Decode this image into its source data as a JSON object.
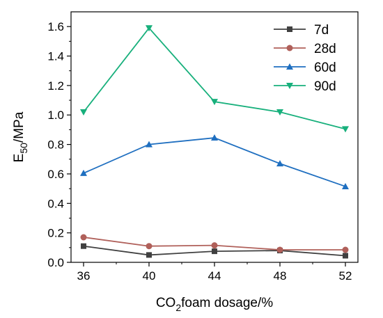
{
  "chart_data": {
    "type": "line",
    "title": "",
    "xlabel": {
      "prefix": "CO",
      "sub": "2",
      "suffix": "foam dosage/%"
    },
    "ylabel": {
      "prefix": "E",
      "sub": "50",
      "suffix": "/MPa"
    },
    "x": [
      36,
      40,
      44,
      48,
      52
    ],
    "x_tick_labels": [
      "36",
      "40",
      "44",
      "48",
      "52"
    ],
    "ylim": [
      0,
      1.7
    ],
    "y_ticks": [
      0.0,
      0.2,
      0.4,
      0.6,
      0.8,
      1.0,
      1.2,
      1.4,
      1.6
    ],
    "y_tick_labels": [
      "0.0",
      "0.2",
      "0.4",
      "0.6",
      "0.8",
      "1.0",
      "1.2",
      "1.4",
      "1.6"
    ],
    "grid": false,
    "legend_position": "top-right",
    "series": [
      {
        "name": "7d",
        "values": [
          0.11,
          0.05,
          0.075,
          0.08,
          0.045
        ],
        "color": "#404040",
        "marker": "square"
      },
      {
        "name": "28d",
        "values": [
          0.17,
          0.11,
          0.115,
          0.085,
          0.085
        ],
        "color": "#b0605a",
        "marker": "circle"
      },
      {
        "name": "60d",
        "values": [
          0.605,
          0.8,
          0.845,
          0.67,
          0.515
        ],
        "color": "#1f6fc0",
        "marker": "triangle-up"
      },
      {
        "name": "90d",
        "values": [
          1.02,
          1.59,
          1.09,
          1.02,
          0.905
        ],
        "color": "#18b07c",
        "marker": "triangle-down"
      }
    ]
  }
}
